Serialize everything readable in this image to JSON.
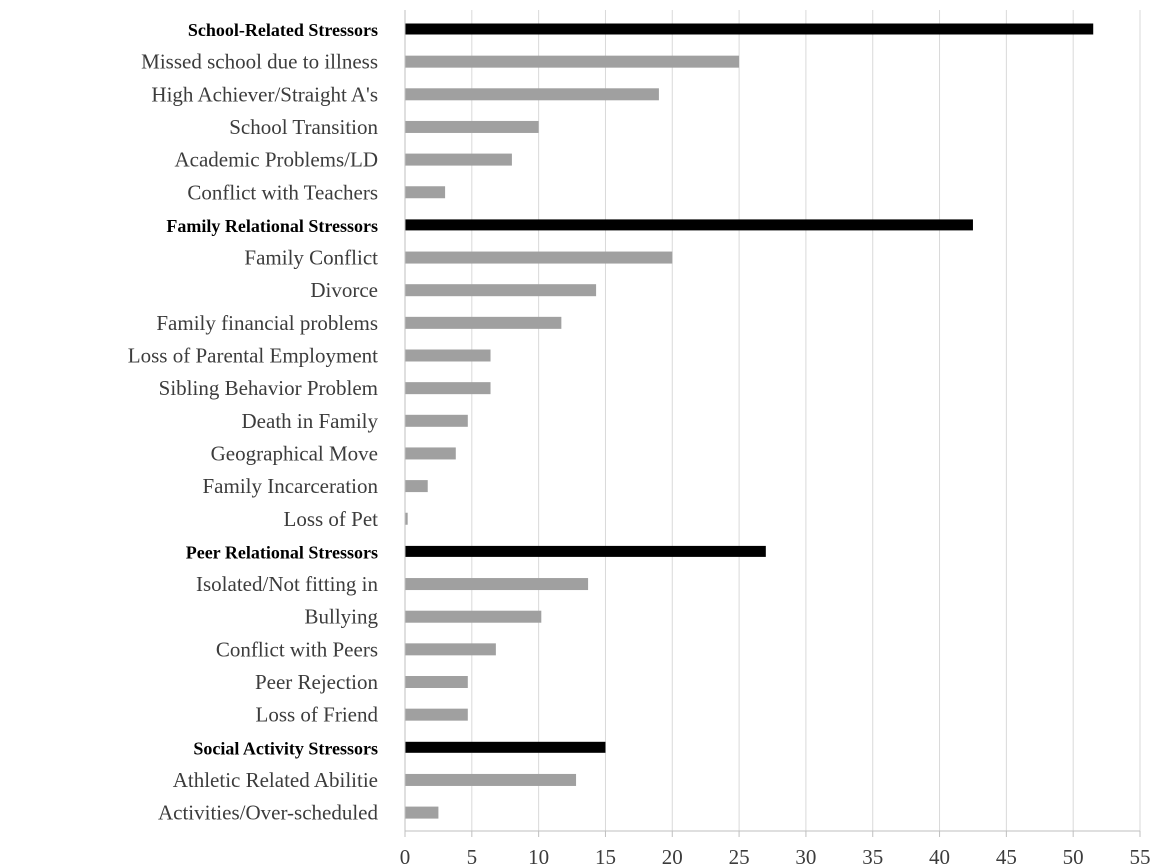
{
  "chart_data": {
    "type": "bar",
    "orientation": "horizontal",
    "grid": true,
    "xlim": [
      0,
      55
    ],
    "xticks": [
      0,
      5,
      10,
      15,
      20,
      25,
      30,
      35,
      40,
      45,
      50,
      55
    ],
    "title": "",
    "xlabel": "",
    "ylabel": "",
    "colors": {
      "header": "#000000",
      "item": "#a0a0a0",
      "grid": "#d9d9d9"
    },
    "categories": [
      {
        "label": "School-Related Stressors",
        "value": 51.5,
        "header": true
      },
      {
        "label": "Missed school due to illness",
        "value": 25,
        "header": false
      },
      {
        "label": "High Achiever/Straight A's",
        "value": 19,
        "header": false
      },
      {
        "label": "School Transition",
        "value": 10,
        "header": false
      },
      {
        "label": "Academic Problems/LD",
        "value": 8,
        "header": false
      },
      {
        "label": "Conflict with Teachers",
        "value": 3,
        "header": false
      },
      {
        "label": "Family Relational Stressors",
        "value": 42.5,
        "header": true
      },
      {
        "label": "Family Conflict",
        "value": 20,
        "header": false
      },
      {
        "label": "Divorce",
        "value": 14.3,
        "header": false
      },
      {
        "label": "Family financial problems",
        "value": 11.7,
        "header": false
      },
      {
        "label": "Loss of Parental Employment",
        "value": 6.4,
        "header": false
      },
      {
        "label": "Sibling Behavior Problem",
        "value": 6.4,
        "header": false
      },
      {
        "label": "Death in Family",
        "value": 4.7,
        "header": false
      },
      {
        "label": "Geographical Move",
        "value": 3.8,
        "header": false
      },
      {
        "label": "Family Incarceration",
        "value": 1.7,
        "header": false
      },
      {
        "label": "Loss of Pet",
        "value": 0.2,
        "header": false
      },
      {
        "label": "Peer Relational Stressors",
        "value": 27,
        "header": true
      },
      {
        "label": "Isolated/Not fitting in",
        "value": 13.7,
        "header": false
      },
      {
        "label": "Bullying",
        "value": 10.2,
        "header": false
      },
      {
        "label": "Conflict with Peers",
        "value": 6.8,
        "header": false
      },
      {
        "label": "Peer Rejection",
        "value": 4.7,
        "header": false
      },
      {
        "label": "Loss of Friend",
        "value": 4.7,
        "header": false
      },
      {
        "label": "Social Activity Stressors",
        "value": 15,
        "header": true
      },
      {
        "label": "Athletic Related Abilitie",
        "value": 12.8,
        "header": false
      },
      {
        "label": "Activities/Over-scheduled",
        "value": 2.5,
        "header": false
      }
    ]
  }
}
